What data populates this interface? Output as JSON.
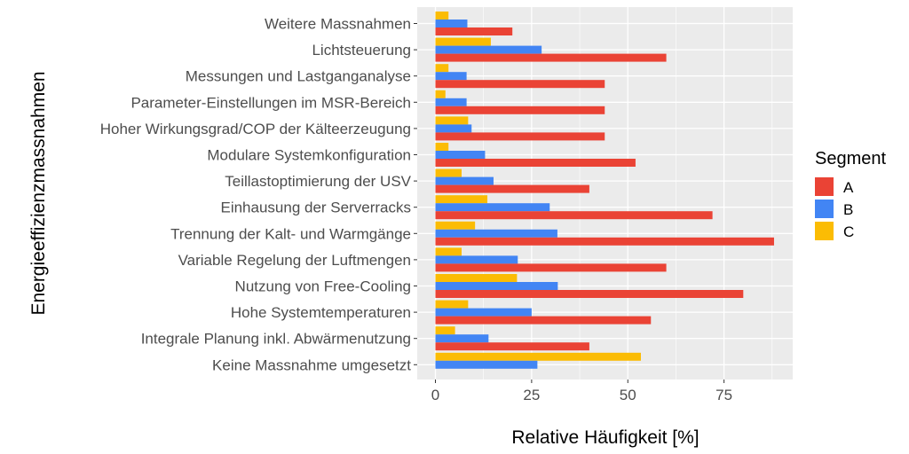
{
  "chart_data": {
    "type": "bar",
    "orientation": "horizontal",
    "xlabel": "Relative Häufigkeit [%]",
    "ylabel": "Energieeffizienzmassnahmen",
    "xlim": [
      -4.5,
      93
    ],
    "xticks": [
      0,
      25,
      50,
      75
    ],
    "grid": true,
    "legend": {
      "title": "Segment",
      "position": "right"
    },
    "categories": [
      "Weitere Massnahmen",
      "Lichtsteuerung",
      "Messungen und Lastganganalyse",
      "Parameter-Einstellungen im MSR-Bereich",
      "Hoher Wirkungsgrad/COP der Kälteerzeugung",
      "Modulare Systemkonfiguration",
      "Teillastoptimierung der USV",
      "Einhausung der Serverracks",
      "Trennung der Kalt- und Warmgänge",
      "Variable Regelung der Luftmengen",
      "Nutzung von Free-Cooling",
      "Hohe Systemtemperaturen",
      "Integrale Planung inkl. Abwärmenutzung",
      "Keine Massnahme umgesetzt"
    ],
    "series": [
      {
        "name": "A",
        "color": "#EA4335",
        "values": [
          20,
          60,
          44,
          44,
          44,
          52,
          40,
          72,
          88,
          60,
          80,
          56,
          40,
          0
        ]
      },
      {
        "name": "B",
        "color": "#4285F4",
        "values": [
          8.3,
          27.6,
          8.1,
          8.1,
          9.4,
          12.9,
          15.1,
          29.7,
          31.7,
          21.4,
          31.8,
          25,
          13.8,
          26.5
        ]
      },
      {
        "name": "C",
        "color": "#FBBC04",
        "values": [
          3.4,
          14.4,
          3.4,
          2.6,
          8.5,
          3.4,
          6.8,
          13.5,
          10.3,
          6.8,
          21.2,
          8.5,
          5.1,
          53.4
        ]
      }
    ]
  }
}
